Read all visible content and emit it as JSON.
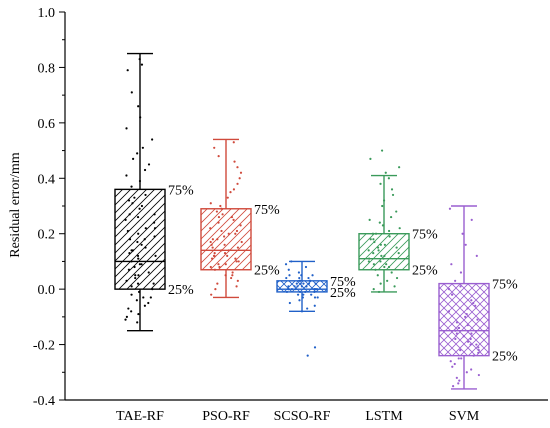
{
  "chart_data": {
    "type": "box",
    "title": "",
    "xlabel": "",
    "ylabel": "Residual error/mm",
    "ylim": [
      -0.4,
      1.0
    ],
    "yticks": [
      -0.4,
      -0.2,
      0.0,
      0.2,
      0.4,
      0.6,
      0.8,
      1.0
    ],
    "ytick_labels": [
      "-0.4",
      "-0.2",
      "0.0",
      "0.2",
      "0.4",
      "0.6",
      "0.8",
      "1.0"
    ],
    "grid": false,
    "legend": "none",
    "q1_label": "25%",
    "q3_label": "75%",
    "boxes": [
      {
        "name": "TAE-RF",
        "color": "#000000",
        "hatch": "single-diagonal",
        "whisker_low": -0.15,
        "q1": 0.0,
        "median": 0.1,
        "q3": 0.36,
        "whisker_high": 0.85,
        "points": [
          0.83,
          0.81,
          0.79,
          0.71,
          0.66,
          0.62,
          0.58,
          0.54,
          0.51,
          0.49,
          0.47,
          0.45,
          0.43,
          0.41,
          0.39,
          0.37,
          0.34,
          0.32,
          0.3,
          0.29,
          0.27,
          0.25,
          0.24,
          0.22,
          0.21,
          0.2,
          0.19,
          0.18,
          0.17,
          0.16,
          0.15,
          0.14,
          0.13,
          0.12,
          0.11,
          0.1,
          0.09,
          0.08,
          0.07,
          0.06,
          0.05,
          0.04,
          0.03,
          0.02,
          0.01,
          0.0,
          -0.01,
          -0.02,
          -0.03,
          -0.04,
          -0.05,
          -0.06,
          -0.07,
          -0.08,
          -0.09,
          -0.1,
          -0.11,
          -0.12,
          0.22,
          0.18,
          0.27,
          0.33,
          0.12,
          0.09,
          0.02,
          -0.03,
          0.05,
          0.26,
          0.31,
          0.14
        ]
      },
      {
        "name": "PSO-RF",
        "color": "#d04a3c",
        "hatch": "single-diagonal",
        "whisker_low": -0.03,
        "q1": 0.07,
        "median": 0.14,
        "q3": 0.29,
        "whisker_high": 0.54,
        "points": [
          0.53,
          0.51,
          0.48,
          0.46,
          0.44,
          0.42,
          0.4,
          0.38,
          0.36,
          0.35,
          0.33,
          0.31,
          0.3,
          0.29,
          0.28,
          0.27,
          0.26,
          0.25,
          0.24,
          0.23,
          0.22,
          0.21,
          0.2,
          0.19,
          0.18,
          0.17,
          0.16,
          0.15,
          0.14,
          0.13,
          0.12,
          0.11,
          0.1,
          0.09,
          0.08,
          0.07,
          0.06,
          0.05,
          0.04,
          0.03,
          0.02,
          0.01,
          0.0,
          -0.02,
          0.15,
          0.17,
          0.12,
          0.1,
          0.21,
          0.13,
          0.09,
          0.16,
          0.26,
          0.05,
          0.11,
          0.14,
          0.18,
          0.08,
          0.2,
          0.12
        ]
      },
      {
        "name": "SCSO-RF",
        "color": "#2060c8",
        "hatch": "cross",
        "whisker_low": -0.08,
        "q1": -0.01,
        "median": 0.0,
        "q3": 0.03,
        "whisker_high": 0.1,
        "points": [
          0.1,
          0.09,
          0.08,
          0.07,
          0.06,
          0.05,
          0.05,
          0.04,
          0.04,
          0.03,
          0.03,
          0.03,
          0.02,
          0.02,
          0.02,
          0.01,
          0.01,
          0.01,
          0.01,
          0.0,
          0.0,
          0.0,
          0.0,
          0.0,
          -0.01,
          -0.01,
          -0.01,
          -0.02,
          -0.02,
          -0.03,
          -0.03,
          -0.04,
          -0.05,
          -0.06,
          -0.07,
          -0.08,
          -0.21,
          -0.24,
          0.02,
          0.0,
          -0.01,
          0.03,
          0.01,
          0.04,
          -0.02,
          0.0,
          0.02,
          -0.03,
          0.01,
          0.05
        ]
      },
      {
        "name": "LSTM",
        "color": "#3a9a5a",
        "hatch": "single-diagonal",
        "whisker_low": -0.01,
        "q1": 0.07,
        "median": 0.11,
        "q3": 0.2,
        "whisker_high": 0.41,
        "points": [
          0.5,
          0.47,
          0.44,
          0.42,
          0.4,
          0.38,
          0.36,
          0.34,
          0.32,
          0.3,
          0.28,
          0.26,
          0.25,
          0.24,
          0.23,
          0.22,
          0.21,
          0.2,
          0.19,
          0.18,
          0.17,
          0.16,
          0.15,
          0.14,
          0.13,
          0.12,
          0.11,
          0.1,
          0.09,
          0.08,
          0.07,
          0.06,
          0.05,
          0.04,
          0.03,
          0.02,
          0.01,
          0.0,
          -0.01,
          0.12,
          0.15,
          0.09,
          0.18,
          0.13,
          0.11,
          0.2,
          0.16,
          0.08,
          0.14,
          0.1
        ]
      },
      {
        "name": "SVM",
        "color": "#9a5fd0",
        "hatch": "cross",
        "whisker_low": -0.36,
        "q1": -0.24,
        "median": -0.15,
        "q3": 0.02,
        "whisker_high": 0.3,
        "points": [
          0.29,
          0.25,
          0.2,
          0.16,
          0.12,
          0.09,
          0.06,
          0.03,
          0.01,
          0.0,
          -0.02,
          -0.04,
          -0.06,
          -0.08,
          -0.1,
          -0.12,
          -0.14,
          -0.15,
          -0.16,
          -0.17,
          -0.18,
          -0.19,
          -0.2,
          -0.21,
          -0.22,
          -0.23,
          -0.24,
          -0.25,
          -0.26,
          -0.27,
          -0.28,
          -0.29,
          -0.3,
          -0.31,
          -0.32,
          -0.33,
          -0.34,
          -0.35,
          -0.11,
          -0.13,
          -0.05,
          -0.2,
          -0.16,
          -0.09,
          -0.02,
          -0.18,
          -0.22,
          -0.07,
          -0.14,
          -0.25
        ]
      }
    ]
  }
}
